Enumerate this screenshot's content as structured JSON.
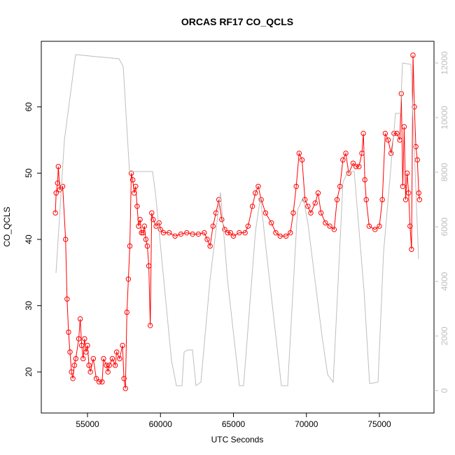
{
  "chart_data": {
    "type": "scatter-line",
    "title": "ORCAS RF17 CO_QCLS",
    "xlabel": "UTC Seconds",
    "ylabel": "CO_QCLS",
    "xlim": [
      51834,
      78741
    ],
    "xticks": [
      55000,
      60000,
      65000,
      70000,
      75000
    ],
    "ylim": [
      13.8,
      69.9
    ],
    "yticks": [
      20,
      30,
      40,
      50,
      60
    ],
    "y2lim": [
      -820,
      12795
    ],
    "y2ticks": [
      0,
      2000,
      4000,
      6000,
      8000,
      10000,
      12000
    ],
    "y2color": "#bebebe",
    "series": [
      {
        "color": "#ff0000",
        "marker": "circle",
        "x": [
          52800,
          52850,
          52950,
          53000,
          53100,
          53300,
          53500,
          53600,
          53700,
          53800,
          53900,
          54000,
          54100,
          54200,
          54400,
          54500,
          54600,
          54700,
          54800,
          54900,
          55000,
          55100,
          55200,
          55400,
          55600,
          55800,
          56000,
          56100,
          56300,
          56400,
          56500,
          56700,
          56900,
          57000,
          57200,
          57400,
          57500,
          57600,
          57700,
          57800,
          57900,
          58000,
          58100,
          58200,
          58300,
          58400,
          58500,
          58600,
          58700,
          58800,
          58900,
          59000,
          59100,
          59200,
          59300,
          59400,
          59500,
          59700,
          59900,
          60000,
          60200,
          60600,
          61000,
          61400,
          61800,
          62200,
          62600,
          63000,
          63200,
          63400,
          63600,
          63800,
          64000,
          64200,
          64400,
          64600,
          64800,
          65000,
          65400,
          65800,
          66000,
          66300,
          66500,
          66700,
          66900,
          67200,
          67600,
          67900,
          68200,
          68600,
          68900,
          69100,
          69300,
          69500,
          69700,
          69900,
          70100,
          70300,
          70600,
          70800,
          71000,
          71300,
          71600,
          71900,
          72100,
          72300,
          72500,
          72700,
          72900,
          73200,
          73400,
          73600,
          73800,
          73900,
          74000,
          74100,
          74300,
          74700,
          75000,
          75200,
          75400,
          75600,
          75800,
          76000,
          76200,
          76400,
          76500,
          76600,
          76700,
          76800,
          76900,
          77000,
          77100,
          77200,
          77300,
          77400,
          77500,
          77600,
          77700,
          77750
        ],
        "values": [
          44,
          47,
          48.5,
          51,
          47.5,
          48,
          40,
          31,
          26,
          23,
          20,
          19,
          21,
          22,
          25,
          28,
          24,
          22,
          25,
          23,
          24,
          21,
          20,
          22,
          19,
          18.5,
          18.5,
          22,
          21,
          20,
          21,
          22,
          21,
          23,
          22,
          24,
          19,
          17.5,
          29,
          34,
          39,
          50,
          49,
          47,
          48,
          45,
          42,
          43,
          41,
          41,
          42,
          40,
          39,
          36,
          27,
          44,
          43,
          42,
          42.5,
          41.5,
          41,
          41,
          40.5,
          40.8,
          41,
          40.8,
          40.8,
          41,
          40,
          39,
          42,
          44,
          46,
          43,
          41.5,
          41,
          41,
          40.5,
          41,
          41,
          42,
          45,
          47,
          48,
          46,
          44,
          42.5,
          41,
          40.5,
          40.5,
          41,
          44,
          48,
          53,
          52,
          46,
          45,
          44,
          45.5,
          47,
          44,
          42.5,
          42,
          41.5,
          46,
          48,
          52,
          53,
          50,
          51.5,
          51,
          51,
          53,
          56,
          49,
          46,
          42,
          41.5,
          42,
          46,
          56,
          55,
          53,
          56,
          56,
          55,
          62,
          48,
          57,
          46,
          50,
          47,
          42,
          38.5,
          67.8,
          60,
          54,
          52,
          47,
          46
        ]
      },
      {
        "color": "#bebebe",
        "axis": "y2",
        "x": [
          52842,
          53417,
          54185,
          57158,
          57446,
          57878,
          59461,
          59652,
          60755,
          61091,
          61475,
          61619,
          61858,
          62194,
          62434,
          62770,
          63393,
          64113,
          64592,
          65408,
          65696,
          66511,
          66847,
          67470,
          68285,
          68717,
          69388,
          69772,
          70108,
          71067,
          71451,
          71835,
          72506,
          72842,
          73274,
          73945,
          74329,
          74904,
          75288,
          76103,
          76439,
          76583,
          77158,
          77686
        ],
        "values": [
          4308,
          9180,
          12308,
          12154,
          11872,
          8026,
          8026,
          7256,
          1103,
          180,
          180,
          1410,
          1487,
          1487,
          180,
          308,
          4051,
          7256,
          4051,
          180,
          180,
          5846,
          7077,
          4051,
          180,
          180,
          6615,
          7077,
          6103,
          2000,
          590,
          308,
          7641,
          8026,
          8026,
          3667,
          256,
          308,
          5077,
          10154,
          10154,
          12000,
          11949,
          4820
        ]
      }
    ]
  }
}
